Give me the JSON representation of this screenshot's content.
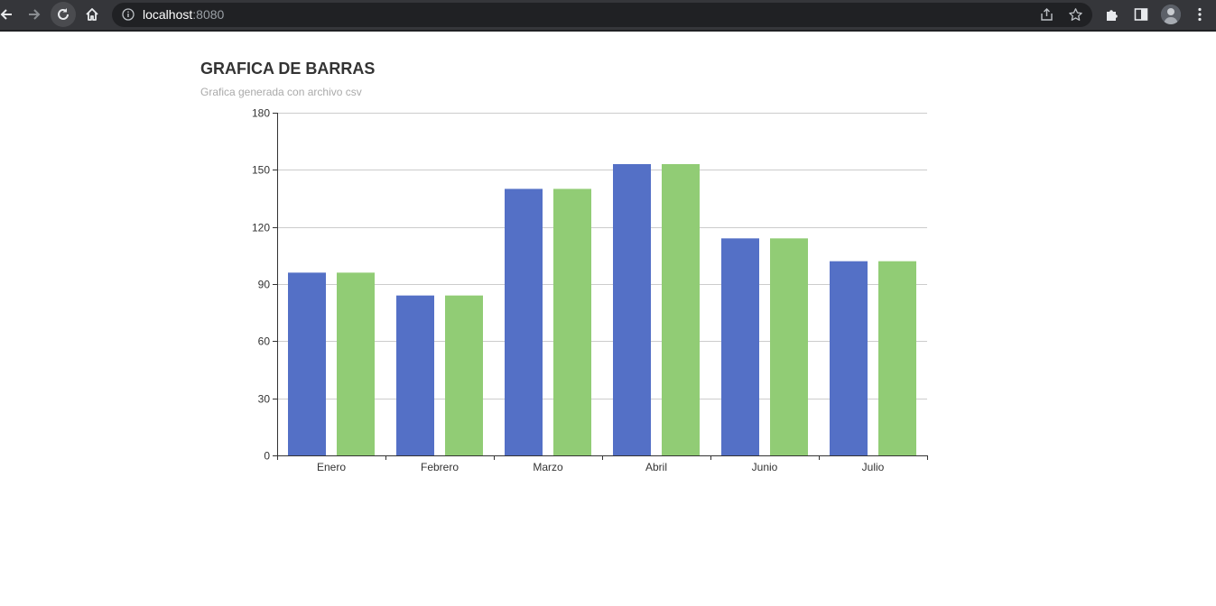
{
  "browser": {
    "url_host": "localhost",
    "url_port": ":8080"
  },
  "chart_data": {
    "type": "bar",
    "title": "GRAFICA DE BARRAS",
    "subtitle": "Grafica generada con archivo csv",
    "categories": [
      "Enero",
      "Febrero",
      "Marzo",
      "Abril",
      "Junio",
      "Julio"
    ],
    "series": [
      {
        "values": [
          96,
          84,
          140,
          153,
          114,
          102
        ],
        "color": "#5470c6"
      },
      {
        "values": [
          96,
          84,
          140,
          153,
          114,
          102
        ],
        "color": "#91cc75"
      }
    ],
    "yticks": [
      0,
      30,
      60,
      90,
      120,
      150,
      180
    ],
    "ylim": [
      0,
      180
    ],
    "xlabel": "",
    "ylabel": "",
    "grid": true,
    "legend": "none"
  }
}
